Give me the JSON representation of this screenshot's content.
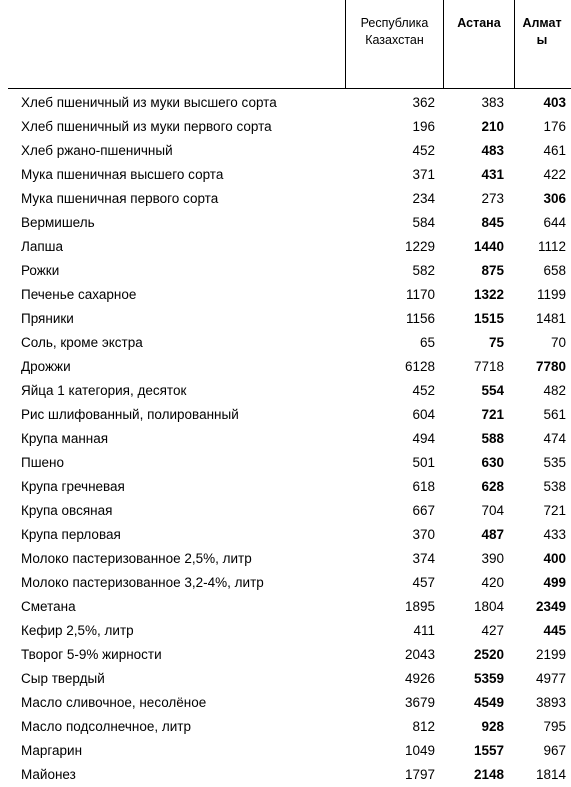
{
  "table": {
    "headers": [
      "Республика Казахстан",
      "Астана",
      "Алматы"
    ],
    "rows": [
      {
        "label": "Хлеб пшеничный из муки высшего сорта",
        "values": [
          362,
          383,
          403
        ],
        "bold": 2
      },
      {
        "label": "Хлеб пшеничный из муки первого сорта",
        "values": [
          196,
          210,
          176
        ],
        "bold": 1
      },
      {
        "label": "Хлеб ржано-пшеничный",
        "values": [
          452,
          483,
          461
        ],
        "bold": 1
      },
      {
        "label": "Мука пшеничная высшего сорта",
        "values": [
          371,
          431,
          422
        ],
        "bold": 1
      },
      {
        "label": "Мука пшеничная первого сорта",
        "values": [
          234,
          273,
          306
        ],
        "bold": 2
      },
      {
        "label": "Вермишель",
        "values": [
          584,
          845,
          644
        ],
        "bold": 1
      },
      {
        "label": "Лапша",
        "values": [
          1229,
          1440,
          1112
        ],
        "bold": 1
      },
      {
        "label": "Рожки",
        "values": [
          582,
          875,
          658
        ],
        "bold": 1
      },
      {
        "label": "Печенье сахарное",
        "values": [
          1170,
          1322,
          1199
        ],
        "bold": 1
      },
      {
        "label": "Пряники",
        "values": [
          1156,
          1515,
          1481
        ],
        "bold": 1
      },
      {
        "label": "Соль, кроме экстра",
        "values": [
          65,
          75,
          70
        ],
        "bold": 1
      },
      {
        "label": "Дрожжи",
        "values": [
          6128,
          7718,
          7780
        ],
        "bold": 2
      },
      {
        "label": "Яйца 1 категория, десяток",
        "values": [
          452,
          554,
          482
        ],
        "bold": 1
      },
      {
        "label": "Рис шлифованный, полированный",
        "values": [
          604,
          721,
          561
        ],
        "bold": 1
      },
      {
        "label": "Крупа манная",
        "values": [
          494,
          588,
          474
        ],
        "bold": 1
      },
      {
        "label": "Пшено",
        "values": [
          501,
          630,
          535
        ],
        "bold": 1
      },
      {
        "label": "Крупа гречневая",
        "values": [
          618,
          628,
          538
        ],
        "bold": 1
      },
      {
        "label": "Крупа овсяная",
        "values": [
          667,
          704,
          721
        ],
        "bold": null
      },
      {
        "label": "Крупа перловая",
        "values": [
          370,
          487,
          433
        ],
        "bold": 1
      },
      {
        "label": "Молоко пастеризованное 2,5%, литр",
        "values": [
          374,
          390,
          400
        ],
        "bold": 2
      },
      {
        "label": "Молоко пастеризованное 3,2-4%, литр",
        "values": [
          457,
          420,
          499
        ],
        "bold": 2
      },
      {
        "label": "Сметана",
        "values": [
          1895,
          1804,
          2349
        ],
        "bold": 2
      },
      {
        "label": "Кефир 2,5%, литр",
        "values": [
          411,
          427,
          445
        ],
        "bold": 2
      },
      {
        "label": "Творог 5-9% жирности",
        "values": [
          2043,
          2520,
          2199
        ],
        "bold": 1
      },
      {
        "label": "Сыр твердый",
        "values": [
          4926,
          5359,
          4977
        ],
        "bold": 1
      },
      {
        "label": "Масло сливочное, несолёное",
        "values": [
          3679,
          4549,
          3893
        ],
        "bold": 1
      },
      {
        "label": "Масло подсолнечное, литр",
        "values": [
          812,
          928,
          795
        ],
        "bold": 1
      },
      {
        "label": "Маргарин",
        "values": [
          1049,
          1557,
          967
        ],
        "bold": 1
      },
      {
        "label": "Майонез",
        "values": [
          1797,
          2148,
          1814
        ],
        "bold": 1
      }
    ]
  }
}
